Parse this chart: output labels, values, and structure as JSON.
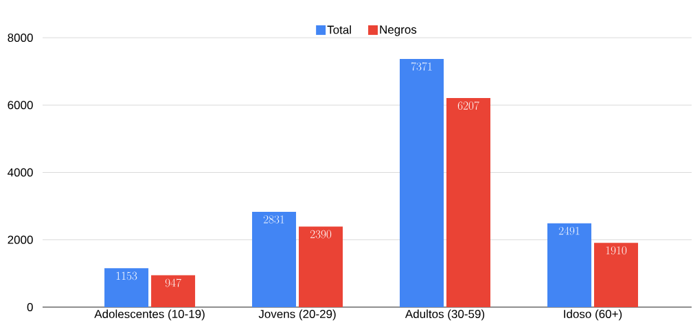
{
  "chart_data": {
    "type": "bar",
    "categories": [
      "Adolescentes (10-19)",
      "Jovens (20-29)",
      "Adultos (30-59)",
      "Idoso (60+)"
    ],
    "series": [
      {
        "name": "Total",
        "color": "#4285f4",
        "values": [
          1153,
          2831,
          7371,
          2491
        ]
      },
      {
        "name": "Negros",
        "color": "#ea4335",
        "values": [
          947,
          2390,
          6207,
          1910
        ]
      }
    ],
    "ylim": [
      0,
      8000
    ],
    "yticks": [
      0,
      2000,
      4000,
      6000,
      8000
    ],
    "grid": "y",
    "legend": "top",
    "data_labels": true
  }
}
